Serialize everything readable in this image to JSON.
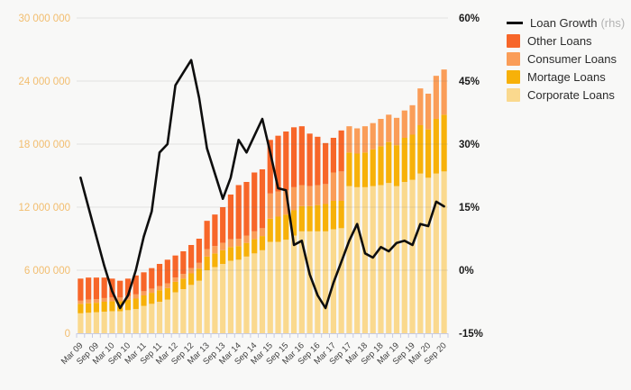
{
  "page": {
    "background": "#f8f8f7"
  },
  "legend": {
    "items": [
      {
        "label": "Loan Growth",
        "suffix": "(rhs)",
        "marker": "line",
        "color": "#111111"
      },
      {
        "label": "Other Loans",
        "marker": "box",
        "color": "#f76629"
      },
      {
        "label": "Consumer Loans",
        "marker": "box",
        "color": "#fa9d58"
      },
      {
        "label": "Mortage Loans",
        "marker": "box",
        "color": "#f7b109"
      },
      {
        "label": "Corporate Loans",
        "marker": "box",
        "color": "#fad98e"
      }
    ]
  },
  "chart_data": {
    "type": "combo-stacked-bar-line",
    "unit": "value (left axis, absolute); line (right axis, %)",
    "quarters": [
      "Mar 09",
      "Jun 09",
      "Sep 09",
      "Dec 09",
      "Mar 10",
      "Jun 10",
      "Sep 10",
      "Dec 10",
      "Mar 11",
      "Jun 11",
      "Sep 11",
      "Dec 11",
      "Mar 12",
      "Jun 12",
      "Sep 12",
      "Dec 12",
      "Mar 13",
      "Jun 13",
      "Sep 13",
      "Dec 13",
      "Mar 14",
      "Jun 14",
      "Sep 14",
      "Dec 14",
      "Mar 15",
      "Jun 15",
      "Sep 15",
      "Dec 15",
      "Mar 16",
      "Jun 16",
      "Sep 16",
      "Dec 16",
      "Mar 17",
      "Jun 17",
      "Sep 17",
      "Dec 17",
      "Mar 18",
      "Jun 18",
      "Sep 18",
      "Dec 18",
      "Mar 19",
      "Jun 19",
      "Sep 19",
      "Dec 19",
      "Mar 20",
      "Jun 20",
      "Sep 20"
    ],
    "x_labeled_every": 2,
    "left_axis": {
      "min": 0,
      "max": 30,
      "tick_labels": [
        "0",
        "6 000 000",
        "12 000 000",
        "18 000 000",
        "24 000 000",
        "30 000 000"
      ],
      "label_color": "#f2bd6e"
    },
    "right_axis": {
      "min": -15,
      "max": 60,
      "tick_labels": [
        "-15%",
        "0%",
        "15%",
        "30%",
        "45%",
        "60%"
      ],
      "label_color": "#1a1a1a"
    },
    "bar_series": [
      {
        "name": "Corporate Loans",
        "color": "#fad98e",
        "values": [
          1.9,
          1.95,
          2.0,
          2.05,
          2.1,
          2.1,
          2.2,
          2.3,
          2.6,
          2.8,
          3.0,
          3.2,
          3.9,
          4.2,
          4.6,
          5.0,
          6.0,
          6.3,
          6.6,
          6.9,
          7.0,
          7.3,
          7.6,
          7.9,
          8.7,
          8.7,
          8.9,
          9.3,
          9.7,
          9.7,
          9.7,
          9.7,
          9.9,
          10.0,
          14.0,
          13.9,
          13.9,
          14.0,
          14.1,
          14.3,
          14.0,
          14.4,
          14.6,
          15.2,
          14.8,
          15.2,
          15.4
        ]
      },
      {
        "name": "Mortage Loans",
        "color": "#f7b109",
        "values": [
          0.9,
          0.9,
          0.9,
          0.95,
          0.95,
          0.95,
          1.0,
          1.0,
          1.0,
          1.05,
          1.1,
          1.1,
          1.0,
          1.0,
          1.1,
          1.15,
          1.3,
          1.3,
          1.3,
          1.3,
          1.3,
          1.3,
          1.35,
          1.35,
          2.2,
          2.4,
          2.4,
          2.4,
          2.4,
          2.4,
          2.5,
          2.6,
          2.7,
          2.6,
          3.2,
          3.2,
          3.3,
          3.5,
          3.7,
          3.9,
          3.9,
          4.2,
          4.3,
          4.6,
          4.6,
          5.2,
          5.4
        ]
      },
      {
        "name": "Consumer Loans",
        "color": "#fa9d58",
        "values": [
          0.3,
          0.35,
          0.35,
          0.35,
          0.35,
          0.35,
          0.35,
          0.4,
          0.4,
          0.4,
          0.4,
          0.45,
          0.4,
          0.45,
          0.5,
          0.55,
          0.7,
          0.7,
          0.7,
          0.75,
          0.7,
          0.7,
          0.75,
          0.75,
          2.4,
          2.4,
          2.3,
          2.2,
          2.0,
          1.9,
          1.9,
          1.9,
          2.7,
          2.8,
          2.5,
          2.4,
          2.5,
          2.5,
          2.6,
          2.6,
          2.6,
          2.6,
          2.8,
          3.5,
          3.4,
          4.1,
          4.3
        ]
      },
      {
        "name": "Other Loans",
        "color": "#f76629",
        "values": [
          2.1,
          2.1,
          2.05,
          1.95,
          1.8,
          1.6,
          1.65,
          1.8,
          1.8,
          1.95,
          2.1,
          2.25,
          2.1,
          2.15,
          2.2,
          2.3,
          2.7,
          3.0,
          3.4,
          4.25,
          5.1,
          5.1,
          5.6,
          5.6,
          5.1,
          5.3,
          5.6,
          5.7,
          5.6,
          5.0,
          4.6,
          3.9,
          3.3,
          3.9,
          0,
          0,
          0,
          0,
          0,
          0,
          0,
          0,
          0,
          0,
          0,
          0,
          0
        ]
      }
    ],
    "line_series": {
      "name": "Loan Growth",
      "axis": "rhs",
      "color": "#0e0e0e",
      "values": [
        22,
        15,
        8,
        1,
        -5,
        -9,
        -6,
        0,
        8,
        14,
        28,
        30,
        44,
        47,
        50,
        41,
        29,
        23,
        17,
        22,
        31,
        28,
        32,
        36,
        28,
        19.5,
        19,
        6,
        7,
        -1,
        -6,
        -9,
        -3,
        2,
        7,
        11,
        4,
        3,
        5.5,
        4.5,
        6.5,
        7,
        6,
        11,
        10.5,
        16.3,
        15.2
      ]
    },
    "grid_color": "rgba(110,110,110,0.16)",
    "axis_tick_color": "#c6cbe4",
    "x_label_color": "#414141"
  }
}
